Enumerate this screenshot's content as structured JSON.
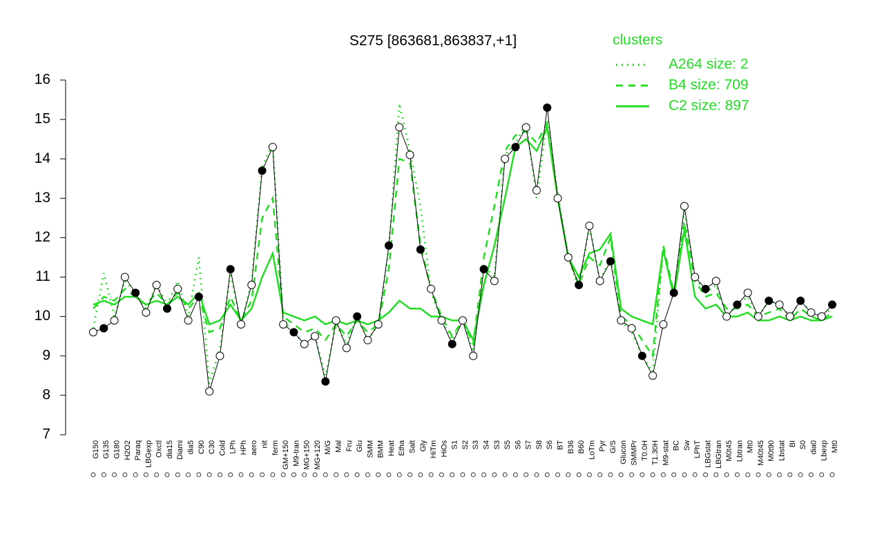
{
  "chart_data": {
    "type": "line",
    "title": "S275 [863681,863837,+1]",
    "legend_title": "clusters",
    "categories": [
      "G150",
      "G135",
      "G180",
      "H2O2",
      "Paraq",
      "LBGexp",
      "Oxctl",
      "dia15",
      "Diami",
      "dia5",
      "C90",
      "C30",
      "Cold",
      "LPh",
      "HPh",
      "aero",
      "nit",
      "ferm",
      "GM+150",
      "M9-tran",
      "MG+150",
      "MG+120",
      "M/G",
      "Mal",
      "Fru",
      "Glu",
      "SMM",
      "BMM",
      "Heat",
      "Etha",
      "Salt",
      "Gly",
      "HiTm",
      "HiOs",
      "S1",
      "S2",
      "S3",
      "S4",
      "S3",
      "S5",
      "S6",
      "S7",
      "S8",
      "S6",
      "BT",
      "B36",
      "B60",
      "LoTm",
      "Pyr",
      "G/S",
      "Glucon",
      "SMMPr",
      "T0.0H",
      "T1.30H",
      "M9-stat",
      "BC",
      "Sw",
      "LPhT",
      "LBGstat",
      "LBGtran",
      "M0t45",
      "Lbtran",
      "Mt0",
      "M40t45",
      "M0t90",
      "Lbstat",
      "BI",
      "S0",
      "dia0",
      "Lbexp",
      "Mt0"
    ],
    "values": [
      9.6,
      9.7,
      9.9,
      11.0,
      10.6,
      10.1,
      10.8,
      10.2,
      10.7,
      9.9,
      10.5,
      8.1,
      9.0,
      11.2,
      9.8,
      10.8,
      13.7,
      14.3,
      9.8,
      9.6,
      9.3,
      9.5,
      8.35,
      9.9,
      9.2,
      10.0,
      9.4,
      9.8,
      11.8,
      14.8,
      14.1,
      11.7,
      10.7,
      9.9,
      9.3,
      9.9,
      9.0,
      11.2,
      10.9,
      14.0,
      14.3,
      14.8,
      13.2,
      15.3,
      13.0,
      11.5,
      10.8,
      12.3,
      10.9,
      11.4,
      9.9,
      9.7,
      9.0,
      8.5,
      9.8,
      10.6,
      12.8,
      11.0,
      10.7,
      10.9,
      10.0,
      10.3,
      10.6,
      10.0,
      10.4,
      10.3,
      10.0,
      10.4,
      10.1,
      10.0,
      10.3
    ],
    "color": "#000000",
    "series": [
      {
        "name": "A264 size: 2",
        "color": "#22dd22",
        "dash": "dotted",
        "values": [
          9.7,
          11.1,
          10.0,
          10.9,
          10.6,
          10.2,
          10.8,
          10.3,
          10.9,
          10.0,
          11.5,
          8.3,
          9.2,
          11.1,
          9.8,
          10.9,
          13.8,
          14.4,
          9.9,
          9.6,
          9.3,
          9.5,
          8.5,
          9.8,
          9.3,
          10.0,
          9.4,
          9.8,
          11.7,
          15.4,
          14.2,
          12.8,
          10.6,
          9.9,
          9.4,
          9.9,
          9.1,
          11.3,
          11.0,
          14.1,
          14.4,
          14.9,
          13.0,
          15.0,
          13.1,
          11.5,
          10.7,
          12.3,
          10.9,
          11.5,
          9.9,
          9.6,
          9.0,
          8.6,
          11.7,
          10.6,
          12.7,
          11.0,
          10.6,
          10.8,
          10.0,
          10.3,
          10.5,
          10.0,
          10.4,
          10.3,
          10.0,
          10.4,
          10.1,
          10.0,
          10.2
        ]
      },
      {
        "name": "B4 size: 709",
        "color": "#22dd22",
        "dash": "dashed",
        "values": [
          10.2,
          10.5,
          10.4,
          10.7,
          10.5,
          10.3,
          10.6,
          10.3,
          10.6,
          10.2,
          10.5,
          9.6,
          9.7,
          10.5,
          9.9,
          10.4,
          12.5,
          13.0,
          10.0,
          9.8,
          9.6,
          9.7,
          9.4,
          9.8,
          9.5,
          9.9,
          9.6,
          9.8,
          11.2,
          14.0,
          13.9,
          11.8,
          10.7,
          10.0,
          9.5,
          9.9,
          9.3,
          11.5,
          12.8,
          14.2,
          14.6,
          14.7,
          14.4,
          14.9,
          13.0,
          11.5,
          10.8,
          11.5,
          11.3,
          12.0,
          10.0,
          9.8,
          9.4,
          9.0,
          11.8,
          10.6,
          12.4,
          10.9,
          10.5,
          10.6,
          10.2,
          10.2,
          10.3,
          10.0,
          10.1,
          10.2,
          9.9,
          10.2,
          10.0,
          9.9,
          10.1
        ]
      },
      {
        "name": "C2 size: 897",
        "color": "#22dd22",
        "dash": "solid",
        "values": [
          10.3,
          10.4,
          10.3,
          10.5,
          10.5,
          10.3,
          10.4,
          10.3,
          10.5,
          10.3,
          10.6,
          9.8,
          9.9,
          10.3,
          9.9,
          10.2,
          11.0,
          11.6,
          10.1,
          10.0,
          9.9,
          10.0,
          9.8,
          9.9,
          9.8,
          9.9,
          9.8,
          9.9,
          10.1,
          10.4,
          10.2,
          10.2,
          10.0,
          10.0,
          9.9,
          9.9,
          9.4,
          10.8,
          11.8,
          13.0,
          14.3,
          14.5,
          14.2,
          14.8,
          13.0,
          11.5,
          11.0,
          11.6,
          11.7,
          12.1,
          10.2,
          10.0,
          9.9,
          9.8,
          11.7,
          10.5,
          12.2,
          10.5,
          10.2,
          10.3,
          10.0,
          10.0,
          10.1,
          9.9,
          9.9,
          10.0,
          9.9,
          10.0,
          9.9,
          9.9,
          10.0
        ]
      }
    ],
    "ylim": [
      7,
      16
    ],
    "yticks": [
      7,
      8,
      9,
      10,
      11,
      12,
      13,
      14,
      15,
      16
    ],
    "legend": "top-right"
  }
}
